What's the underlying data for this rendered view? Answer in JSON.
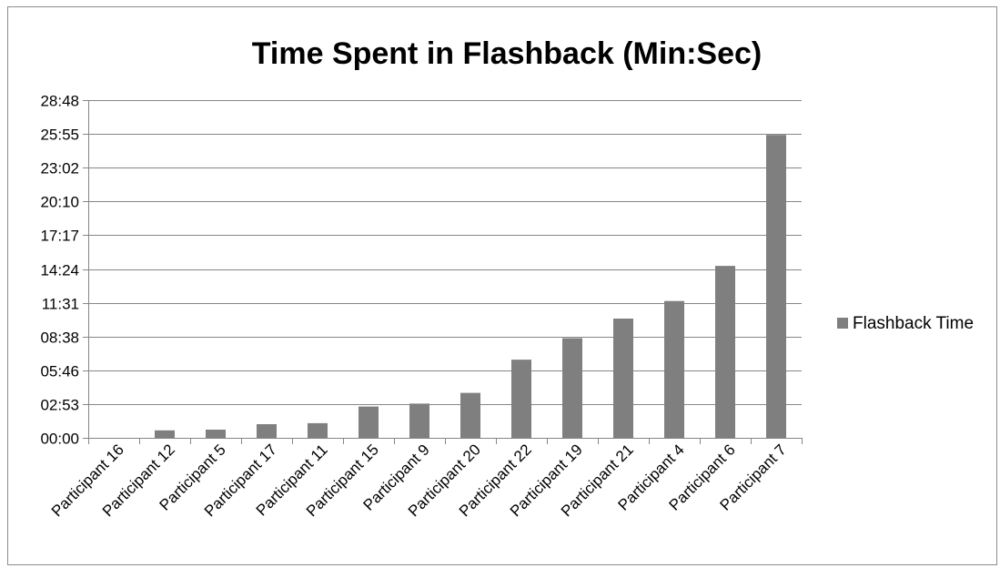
{
  "chart_data": {
    "type": "bar",
    "title": "Time Spent in Flashback (Min:Sec)",
    "xlabel": "",
    "ylabel": "",
    "categories": [
      "Participant 16",
      "Participant 12",
      "Participant 5",
      "Participant 17",
      "Participant 11",
      "Participant 15",
      "Participant 9",
      "Participant 20",
      "Participant 22",
      "Participant 19",
      "Participant 21",
      "Participant 4",
      "Participant 6",
      "Participant 7"
    ],
    "series": [
      {
        "name": "Flashback Time",
        "values": [
          0,
          38,
          42,
          70,
          75,
          160,
          175,
          230,
          400,
          510,
          610,
          700,
          880,
          1550
        ]
      }
    ],
    "value_unit": "seconds",
    "ylim": [
      0,
      1728
    ],
    "yticks": [
      0,
      173,
      346,
      518,
      691,
      864,
      1037,
      1210,
      1382,
      1555,
      1728
    ],
    "ytick_labels": [
      "00:00",
      "02:53",
      "05:46",
      "08:38",
      "11:31",
      "14:24",
      "17:17",
      "20:10",
      "23:02",
      "25:55",
      "28:48"
    ],
    "grid": true,
    "legend_position": "right",
    "colors": {
      "bar": "#7f7f7f",
      "grid": "#878787",
      "axis": "#868686",
      "text": "#000000"
    }
  }
}
